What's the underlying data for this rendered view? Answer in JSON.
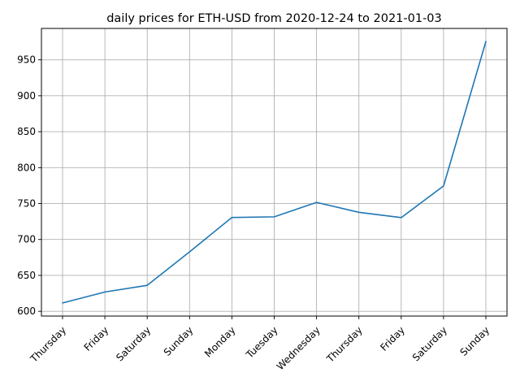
{
  "chart_data": {
    "type": "line",
    "title": "daily prices for ETH-USD from 2020-12-24 to 2021-01-03",
    "xlabel": "",
    "ylabel": "",
    "categories": [
      "Thursday",
      "Friday",
      "Saturday",
      "Sunday",
      "Monday",
      "Tuesday",
      "Wednesday",
      "Thursday",
      "Friday",
      "Saturday",
      "Sunday"
    ],
    "series": [
      {
        "values": [
          611.6,
          626.9,
          636.2,
          682.8,
          730.6,
          731.5,
          751.6,
          737.8,
          730.4,
          774.5,
          975.5
        ],
        "color": "#1f77b4"
      }
    ],
    "yticks": [
      600,
      650,
      700,
      750,
      800,
      850,
      900,
      950
    ],
    "ylim": [
      593.4,
      993.7
    ],
    "grid": true,
    "legend": "none"
  }
}
